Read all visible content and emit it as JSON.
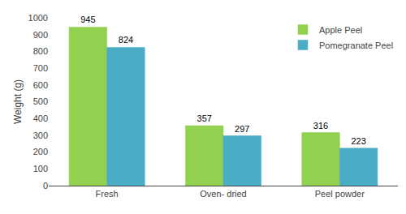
{
  "chart_data": {
    "type": "bar",
    "categories": [
      "Fresh",
      "Oven- dried",
      "Peel powder"
    ],
    "series": [
      {
        "name": "Apple Peel",
        "color": "#92D050",
        "values": [
          945,
          357,
          316
        ]
      },
      {
        "name": "Pomegranate Peel",
        "color": "#4BACC6",
        "values": [
          824,
          297,
          223
        ]
      }
    ],
    "ylabel": "Weight (g)",
    "ylim": [
      0,
      1000
    ],
    "yticks": [
      0,
      100,
      200,
      300,
      400,
      500,
      600,
      700,
      800,
      900,
      1000
    ],
    "data_labels": true,
    "grid": false,
    "legend": "upper right"
  }
}
